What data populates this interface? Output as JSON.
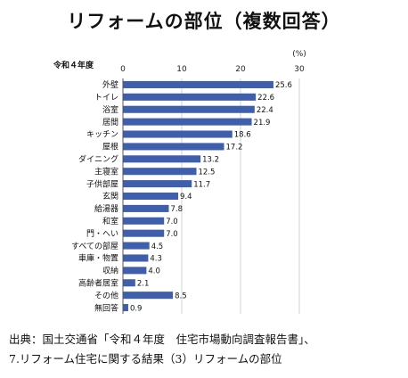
{
  "title": "リフォームの部位（複数回答）",
  "source": {
    "line1": "出典：国土交通省「令和４年度　住宅市場動向調査報告書」、",
    "line2": "7.リフォーム住宅に関する結果（3）リフォームの部位"
  },
  "chart_data": {
    "type": "bar",
    "orientation": "horizontal",
    "title": "リフォームの部位（複数回答）",
    "year_label": "令和４年度",
    "unit_label": "(%)",
    "xlim": [
      0,
      30
    ],
    "xticks": [
      0,
      10,
      20,
      30
    ],
    "grid": true,
    "bar_color": "#3f5fad",
    "categories": [
      "外壁",
      "トイレ",
      "浴室",
      "居間",
      "キッチン",
      "屋根",
      "ダイニング",
      "主寝室",
      "子供部屋",
      "玄関",
      "給湯器",
      "和室",
      "門・へい",
      "すべての部屋",
      "車庫・物置",
      "収納",
      "高齢者居室",
      "その他",
      "無回答"
    ],
    "values": [
      25.6,
      22.6,
      22.4,
      21.9,
      18.6,
      17.2,
      13.2,
      12.5,
      11.7,
      9.4,
      7.8,
      7.0,
      7.0,
      4.5,
      4.3,
      4.0,
      2.1,
      8.5,
      0.9
    ],
    "value_labels": [
      "25.6",
      "22.6",
      "22.4",
      "21.9",
      "18.6",
      "17.2",
      "13.2",
      "12.5",
      "11.7",
      "9.4",
      "7.8",
      "7.0",
      "7.0",
      "4.5",
      "4.3",
      "4.0",
      "2.1",
      "8.5",
      "0.9"
    ]
  }
}
